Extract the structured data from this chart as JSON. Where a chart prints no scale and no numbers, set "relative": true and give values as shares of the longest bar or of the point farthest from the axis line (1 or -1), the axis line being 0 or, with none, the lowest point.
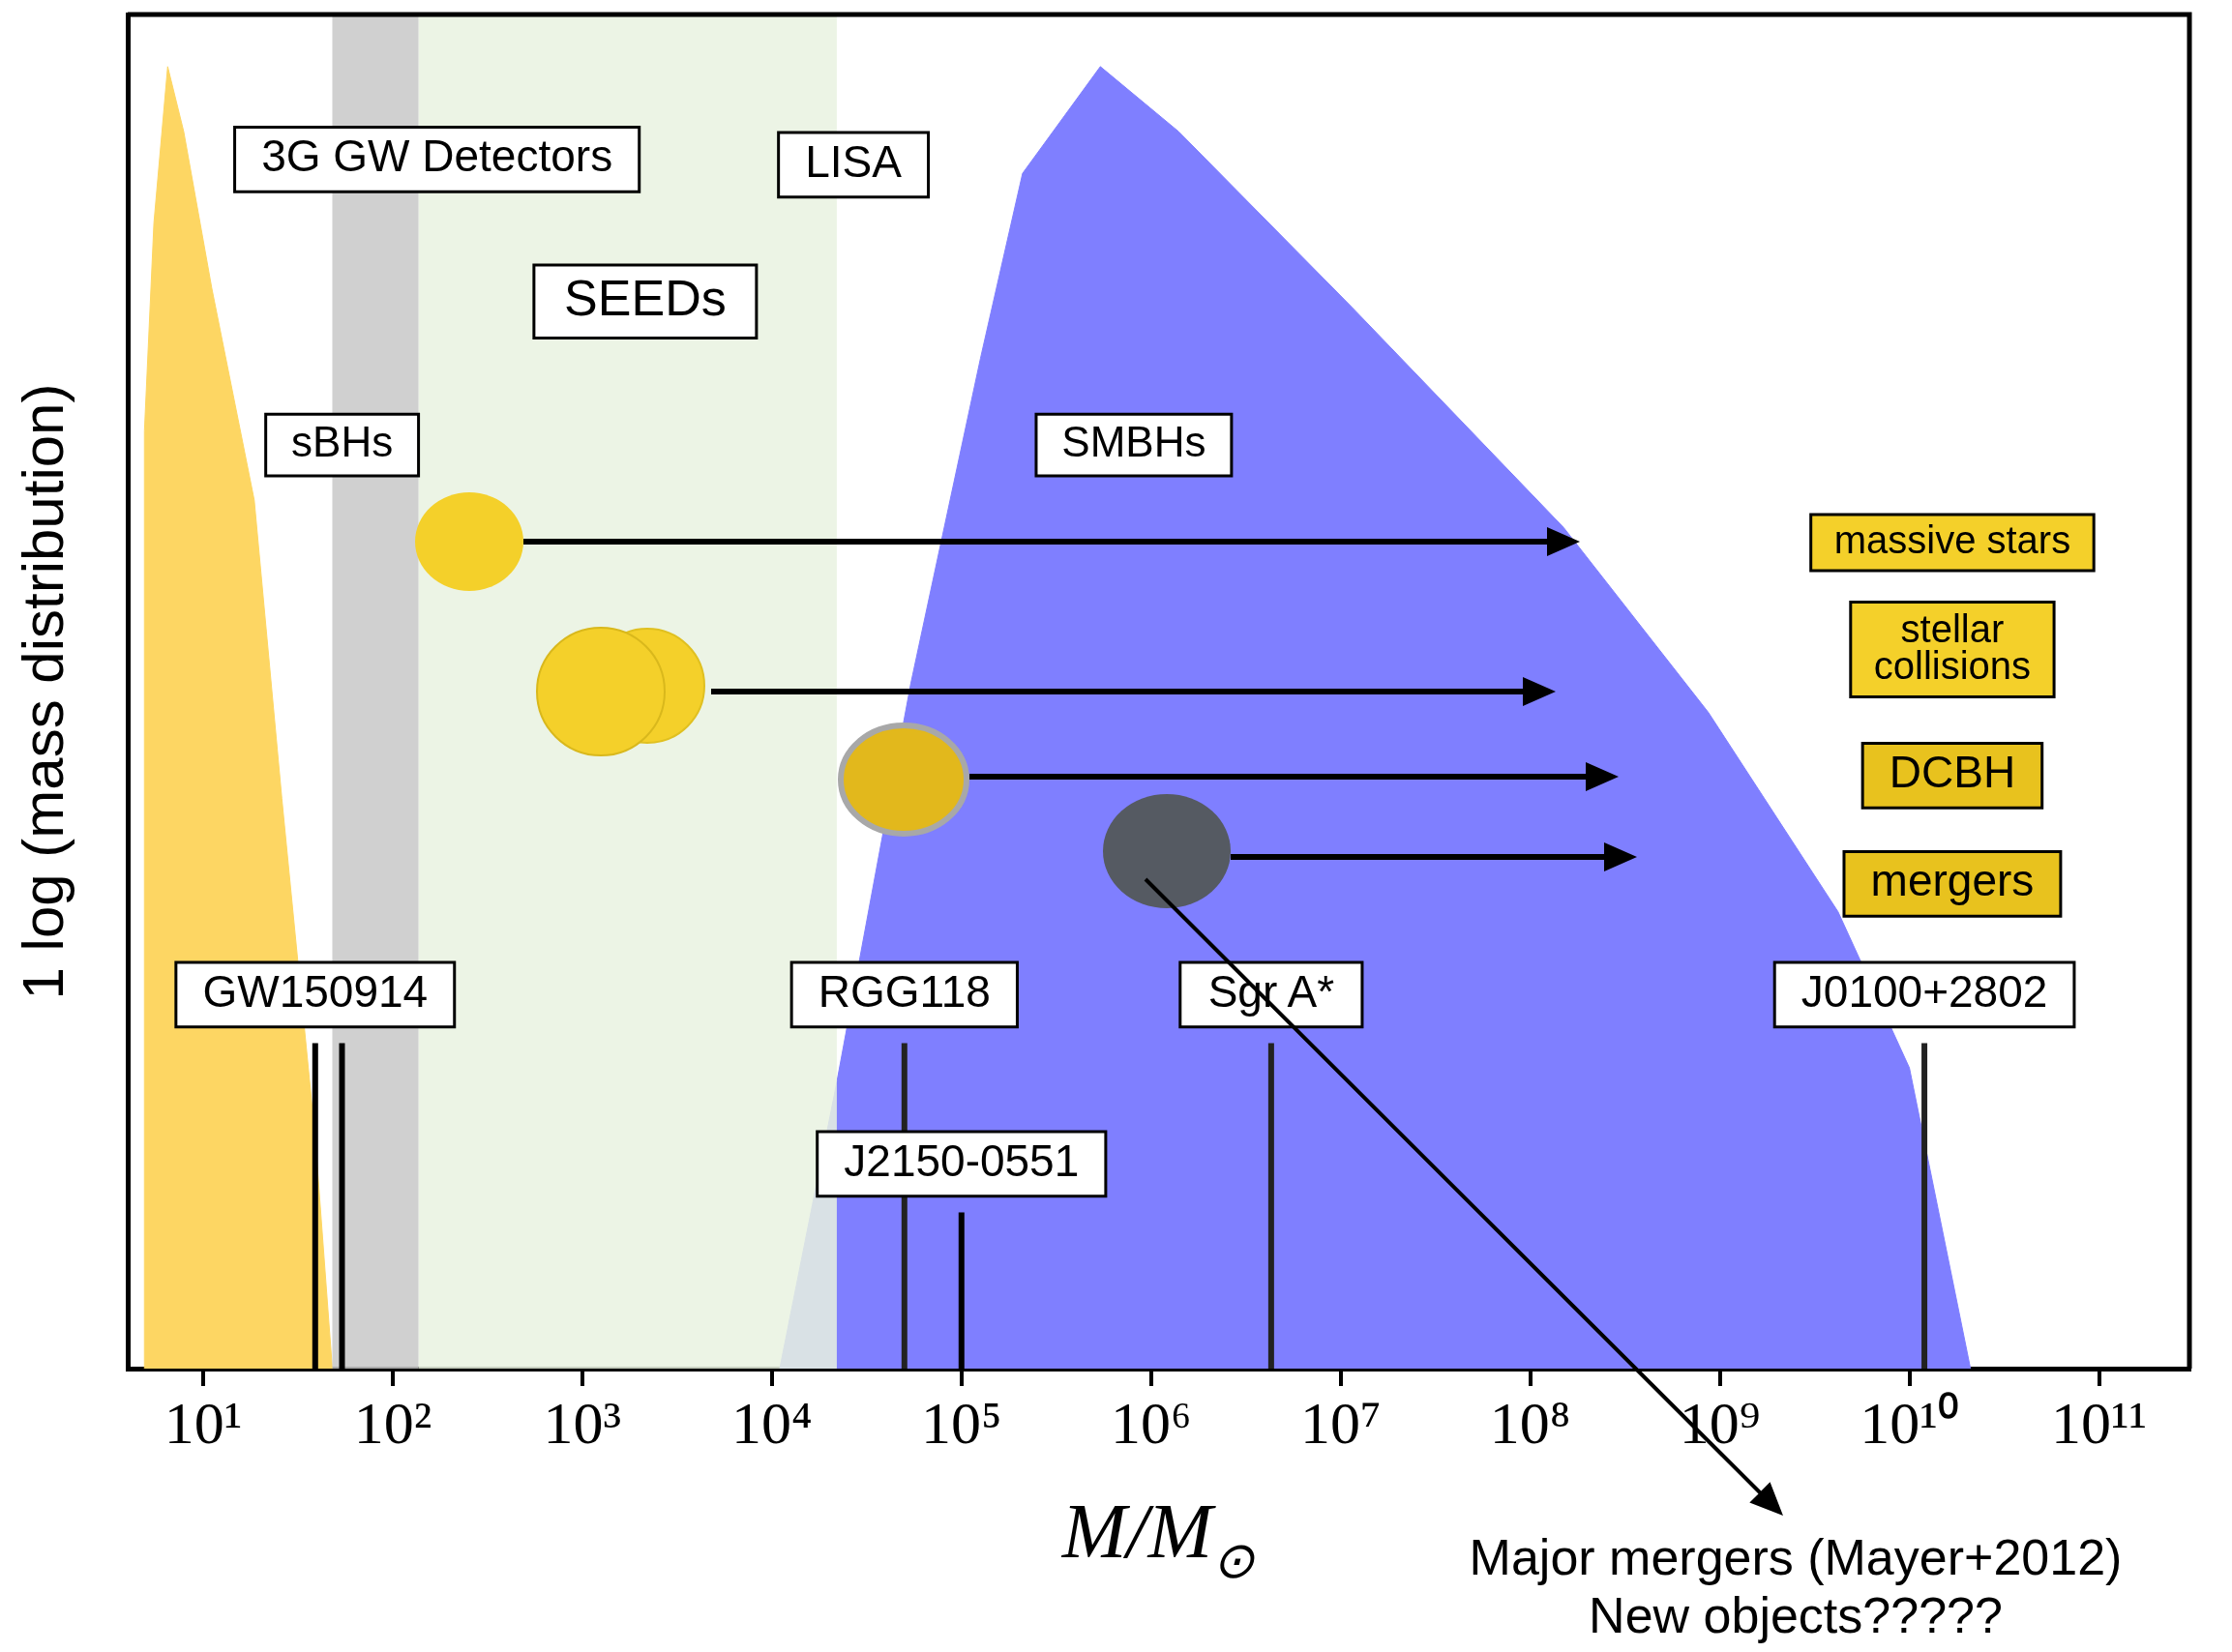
{
  "chart_data": {
    "type": "area",
    "relative": true,
    "log": "x",
    "grid": false,
    "legend": false,
    "xlabel": "M/M$_{⊙}$",
    "ylabel": "1 log (mass distribution)",
    "xlim": [
      4,
      300000000000
    ],
    "xticks": [
      {
        "value": 10,
        "label": "10¹"
      },
      {
        "value": 100,
        "label": "10²"
      },
      {
        "value": 1000,
        "label": "10³"
      },
      {
        "value": 10000,
        "label": "10⁴"
      },
      {
        "value": 100000,
        "label": "10⁵"
      },
      {
        "value": 1000000,
        "label": "10⁶"
      },
      {
        "value": 10000000,
        "label": "10⁷"
      },
      {
        "value": 100000000,
        "label": "10⁸"
      },
      {
        "value": 1000000000,
        "label": "10⁹"
      },
      {
        "value": 10000000000,
        "label": "10¹⁰"
      },
      {
        "value": 100000000000,
        "label": "10¹¹"
      }
    ],
    "series": [
      {
        "color": "#fdd663",
        "x": [
          4.9,
          4.9,
          5.5,
          6.5,
          7.9,
          11.1,
          18.6,
          26,
          39,
          48
        ],
        "values": [
          0,
          0.72,
          0.88,
          1,
          0.95,
          0.83,
          0.667,
          0.438,
          0.177,
          0
        ]
      },
      {
        "color": "#7f7fff",
        "x": [
          11000,
          22000,
          54000,
          126000,
          210000,
          540000,
          1400000,
          11500000,
          150000000,
          870000000,
          4200000000,
          10000000000,
          21000000000
        ],
        "values": [
          0,
          0.22,
          0.526,
          0.776,
          0.918,
          1,
          0.95,
          0.815,
          0.646,
          0.504,
          0.351,
          0.231,
          0
        ]
      }
    ],
    "bands": [
      {
        "axis": "x",
        "from": 48,
        "to": 137,
        "color": "#c8c8c8"
      },
      {
        "axis": "x",
        "from": 137,
        "to": 22000,
        "color": "#e9f2e1"
      }
    ],
    "ref_lines": [
      {
        "axis": "x",
        "value": 39,
        "label": "GW150914",
        "color": "#000000"
      },
      {
        "axis": "x",
        "value": 54,
        "color": "#000000"
      },
      {
        "axis": "x",
        "value": 50000,
        "label": "RGG118",
        "color": "#222222"
      },
      {
        "axis": "x",
        "value": 100000,
        "label": "J2150-0551",
        "color": "#000000"
      },
      {
        "axis": "x",
        "value": 4300000,
        "label": "Sgr A*",
        "color": "#222222"
      },
      {
        "axis": "x",
        "value": 12000000000,
        "label": "J0100+2802",
        "color": "#222222"
      }
    ],
    "annotations": [
      "3G GW Detectors",
      "LISA",
      "SEEDs",
      "sBHs",
      "SMBHs",
      "massive stars",
      "stellar collisions",
      "DCBH",
      "mergers",
      "Major mergers (Mayer+2012)",
      "New objects?????"
    ]
  }
}
